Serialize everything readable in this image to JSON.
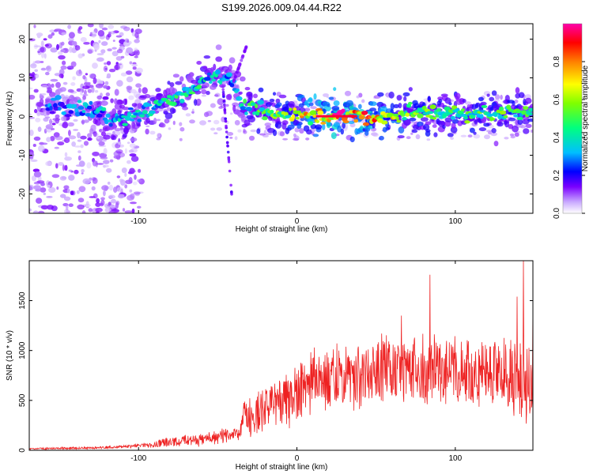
{
  "title": "S199.2026.009.04.44.R22",
  "colors": {
    "snr_line": "#ee2222",
    "background": "#ffffff",
    "axis": "#000000"
  },
  "chart_data": [
    {
      "type": "heatmap",
      "xlabel": "Height of straight line (km)",
      "ylabel": "Frequency (Hz)",
      "xlim": [
        -169,
        149
      ],
      "ylim": [
        -25,
        24
      ],
      "xticks": [
        -100,
        0,
        100
      ],
      "yticks": [
        -20,
        -10,
        0,
        10,
        20
      ],
      "colorbar": {
        "label": "Normalized spectral amplitude",
        "range": [
          0,
          1
        ],
        "ticks": [
          "0.0",
          "0.2",
          "0.4",
          "0.6",
          "0.8"
        ],
        "tick_values": [
          0.0,
          0.2,
          0.4,
          0.6,
          0.8
        ],
        "colormap": [
          "#ffffff",
          "#c9a8ff",
          "#7a00ff",
          "#0000ff",
          "#00bfff",
          "#00ff7f",
          "#7fff00",
          "#ffff00",
          "#ff7f00",
          "#ff0000",
          "#ff00aa"
        ]
      },
      "ridge": [
        {
          "x": -150,
          "f": 2.5,
          "a": 0.3
        },
        {
          "x": -130,
          "f": 2.0,
          "a": 0.35
        },
        {
          "x": -115,
          "f": -1.0,
          "a": 0.4
        },
        {
          "x": -100,
          "f": 0.5,
          "a": 0.4
        },
        {
          "x": -85,
          "f": 3.5,
          "a": 0.45
        },
        {
          "x": -70,
          "f": 6.5,
          "a": 0.48
        },
        {
          "x": -60,
          "f": 9.0,
          "a": 0.45
        },
        {
          "x": -50,
          "f": 11.0,
          "a": 0.4
        },
        {
          "x": -40,
          "f": 9.0,
          "a": 0.3
        },
        {
          "x": -35,
          "f": 2.5,
          "a": 0.45
        },
        {
          "x": -20,
          "f": 1.0,
          "a": 0.55
        },
        {
          "x": 0,
          "f": 0.5,
          "a": 0.7
        },
        {
          "x": 15,
          "f": 0.0,
          "a": 0.9
        },
        {
          "x": 35,
          "f": 0.0,
          "a": 1.0
        },
        {
          "x": 55,
          "f": 0.0,
          "a": 0.8
        },
        {
          "x": 70,
          "f": 1.0,
          "a": 0.6
        },
        {
          "x": 90,
          "f": 1.0,
          "a": 0.55
        },
        {
          "x": 110,
          "f": 0.5,
          "a": 0.55
        },
        {
          "x": 130,
          "f": 1.0,
          "a": 0.55
        },
        {
          "x": 149,
          "f": 1.0,
          "a": 0.5
        }
      ],
      "noise_region": {
        "x_from": -169,
        "x_to": -98,
        "f_from": -25,
        "f_to": 24
      }
    },
    {
      "type": "line",
      "xlabel": "Height of straight line (km)",
      "ylabel": "SNR (10 * v/v)",
      "xlim": [
        -169,
        149
      ],
      "ylim": [
        0,
        1900
      ],
      "xticks": [
        -100,
        0,
        100
      ],
      "yticks": [
        0,
        500,
        1000,
        1500
      ],
      "series": [
        {
          "name": "SNR",
          "envelope": {
            "x": [
              -169,
              -150,
              -130,
              -110,
              -100,
              -90,
              -80,
              -70,
              -60,
              -50,
              -40,
              -36,
              -35,
              -30,
              -20,
              -10,
              0,
              10,
              20,
              30,
              40,
              50,
              60,
              70,
              80,
              90,
              100,
              110,
              120,
              130,
              140,
              149
            ],
            "mean": [
              15,
              20,
              25,
              35,
              45,
              60,
              90,
              100,
              110,
              130,
              150,
              160,
              320,
              330,
              420,
              480,
              600,
              680,
              720,
              740,
              760,
              800,
              820,
              800,
              830,
              820,
              780,
              780,
              740,
              760,
              740,
              740
            ],
            "spread": [
              8,
              10,
              10,
              15,
              20,
              30,
              50,
              50,
              60,
              70,
              70,
              60,
              160,
              170,
              200,
              220,
              250,
              260,
              270,
              280,
              280,
              300,
              300,
              320,
              330,
              320,
              320,
              320,
              330,
              340,
              380,
              400
            ]
          },
          "peaks": [
            {
              "x": 84,
              "y": 1760
            },
            {
              "x": 143,
              "y": 1900
            },
            {
              "x": 149,
              "y": 1440
            },
            {
              "x": 139,
              "y": 1540
            },
            {
              "x": 66,
              "y": 1350
            }
          ]
        }
      ]
    }
  ]
}
